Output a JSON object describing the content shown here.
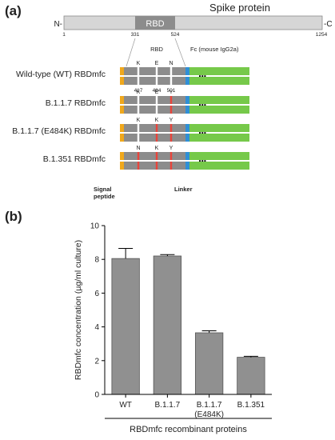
{
  "panel_a": {
    "label": "(a)",
    "spike": {
      "title": "Spike protein",
      "rbd_label": "RBD",
      "n_term": "N-",
      "c_term": "-C",
      "positions": [
        "1",
        "331",
        "524",
        "1254"
      ]
    },
    "construct_headers": {
      "rbd": "RBD",
      "fc": "Fc (mouse IgG2a)"
    },
    "residue_positions": [
      "417",
      "484",
      "501"
    ],
    "constructs": [
      {
        "name": "Wild-type (WT) RBDmfc",
        "residues": [
          "K",
          "E",
          "N"
        ],
        "mutated": [
          false,
          false,
          false
        ]
      },
      {
        "name": "B.1.1.7 RBDmfc",
        "residues": [
          "K",
          "E",
          "Y"
        ],
        "mutated": [
          false,
          false,
          true
        ]
      },
      {
        "name": "B.1.1.7 (E484K) RBDmfc",
        "residues": [
          "K",
          "K",
          "Y"
        ],
        "mutated": [
          false,
          true,
          true
        ]
      },
      {
        "name": "B.1.351 RBDmfc",
        "residues": [
          "N",
          "K",
          "Y"
        ],
        "mutated": [
          true,
          true,
          true
        ]
      }
    ],
    "legend": {
      "signal_line1": "Signal",
      "signal_line2": "peptide",
      "linker": "Linker"
    },
    "colors": {
      "signal": "#f0a81c",
      "rbd": "#8c8c8c",
      "linker": "#2f8fd6",
      "fc": "#76c94a",
      "mutation": "#e8453c",
      "site": "#ffffff"
    }
  },
  "panel_b": {
    "label": "(b)",
    "chart_data": {
      "type": "bar",
      "categories": [
        "WT",
        "B.1.1.7",
        "B.1.1.7\n(E484K)",
        "B.1.351"
      ],
      "values": [
        8.05,
        8.2,
        3.65,
        2.2
      ],
      "errors": [
        0.6,
        0.08,
        0.12,
        0.06
      ],
      "ylabel": "RBDmfc concentration (µg/ml culture)",
      "xlabel": "RBDmfc recombinant proteins",
      "ylim": [
        0,
        10
      ],
      "yticks": [
        0,
        2,
        4,
        6,
        8,
        10
      ],
      "grid": false,
      "bar_color": "#909090"
    }
  }
}
